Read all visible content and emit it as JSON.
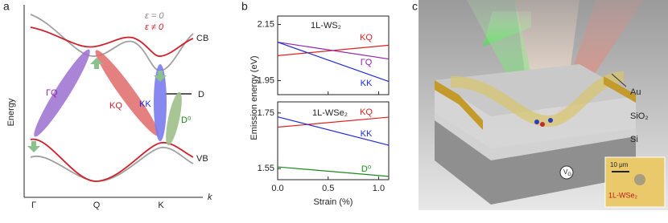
{
  "panel_labels": [
    "a",
    "b",
    "c"
  ],
  "band_diagram": {
    "legend": [
      "ε = 0",
      "ε ≠ 0"
    ],
    "band_labels": [
      "CB",
      "D",
      "VB"
    ],
    "transitions": [
      "ΓQ",
      "KQ",
      "KK",
      "D⁰"
    ],
    "ylabel": "Energy",
    "xlabels": [
      "Γ",
      "Q",
      "K"
    ],
    "xlabel": "k"
  },
  "chart_data": [
    {
      "type": "line",
      "title": "1L-WS₂",
      "ylabel": "Emission energy (eV)",
      "x": [
        0,
        1.1
      ],
      "xlim": [
        0,
        1.1
      ],
      "xticks": [
        0,
        0.5,
        1
      ],
      "ylim": [
        1.9,
        2.18
      ],
      "yticks": [
        2.15,
        1.95
      ],
      "series": [
        {
          "name": "KQ",
          "color": "#e02020",
          "values": [
            2.039,
            2.076
          ]
        },
        {
          "name": "ΓQ",
          "color": "#8e24aa",
          "values": [
            2.087,
            2.027
          ]
        },
        {
          "name": "KK",
          "color": "#1f2bd6",
          "values": [
            2.087,
            1.947
          ]
        }
      ]
    },
    {
      "type": "line",
      "title": "1L-WSe₂",
      "xlabel": "Strain (%)",
      "x": [
        0,
        1.1
      ],
      "xlim": [
        0,
        1.1
      ],
      "xticks": [
        {
          "value": 0,
          "label": "0.0"
        },
        {
          "value": 0.5,
          "label": "0.5"
        },
        {
          "value": 1,
          "label": "1.0"
        }
      ],
      "ylim": [
        1.51,
        1.79
      ],
      "yticks": [
        1.75,
        1.55
      ],
      "series": [
        {
          "name": "KQ",
          "color": "#e02020",
          "values": [
            1.699,
            1.735
          ]
        },
        {
          "name": "KK",
          "color": "#1f2bd6",
          "values": [
            1.736,
            1.634
          ]
        },
        {
          "name": "D⁰",
          "color": "#1a8a1a",
          "values": [
            1.556,
            1.522
          ]
        }
      ]
    }
  ],
  "device": {
    "labels": [
      "Au",
      "SiO₂",
      "Si"
    ],
    "gate": "V",
    "gate_sub": "G",
    "scale": "10 μm",
    "flake": "1L-WSe₂"
  }
}
